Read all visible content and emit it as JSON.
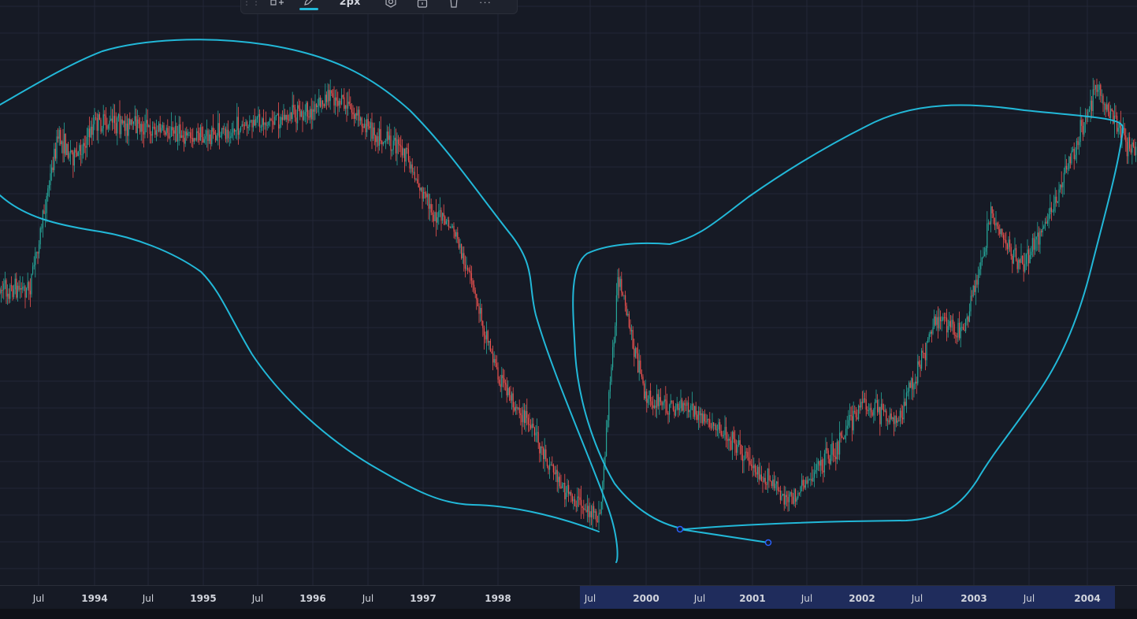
{
  "toolbar": {
    "grip_icon": "drag-handle-icon",
    "add_icon": "add-object-icon",
    "pen_icon": "pencil-icon",
    "pen_color": "#22b8d8",
    "width_label": "2px",
    "settings_icon": "gear-icon",
    "lock_icon": "lock-icon",
    "delete_icon": "trash-icon",
    "more_label": "···"
  },
  "colors": {
    "background": "#161a25",
    "grid": "#232736",
    "up_candle": "#26a69a",
    "down_candle": "#ef5350",
    "drawing": "#22b8d8",
    "highlight_range": "#1f2c5c"
  },
  "chart_data": {
    "type": "candlestick",
    "title": "",
    "xlabel": "",
    "ylabel": "",
    "xlim": [
      "1993-06-01",
      "2004-05-15"
    ],
    "grid": true,
    "x_ticks": [
      {
        "label": "Jul",
        "date": "1993-07-01",
        "bold": false
      },
      {
        "label": "1994",
        "date": "1994-01-01",
        "bold": true
      },
      {
        "label": "Jul",
        "date": "1994-07-01",
        "bold": false
      },
      {
        "label": "1995",
        "date": "1995-01-01",
        "bold": true
      },
      {
        "label": "Jul",
        "date": "1995-07-01",
        "bold": false
      },
      {
        "label": "1996",
        "date": "1996-01-01",
        "bold": true
      },
      {
        "label": "Jul",
        "date": "1996-07-01",
        "bold": false
      },
      {
        "label": "1997",
        "date": "1997-01-01",
        "bold": true
      },
      {
        "label": "1998",
        "date": "1998-01-01",
        "bold": true
      },
      {
        "label": "Jul",
        "date": "1999-07-01",
        "bold": false
      },
      {
        "label": "2000",
        "date": "2000-01-01",
        "bold": true
      },
      {
        "label": "Jul",
        "date": "2000-07-01",
        "bold": false
      },
      {
        "label": "2001",
        "date": "2001-01-01",
        "bold": true
      },
      {
        "label": "Jul",
        "date": "2001-07-01",
        "bold": false
      },
      {
        "label": "2002",
        "date": "2002-01-01",
        "bold": true
      },
      {
        "label": "Jul",
        "date": "2002-07-01",
        "bold": false
      },
      {
        "label": "2003",
        "date": "2003-01-01",
        "bold": true
      },
      {
        "label": "Jul",
        "date": "2003-07-01",
        "bold": false
      },
      {
        "label": "2004",
        "date": "2004-01-01",
        "bold": true
      }
    ],
    "selected_range": [
      "1999-05-01",
      "2004-04-01"
    ],
    "price_path_relative": [
      {
        "date": "1993-06-01",
        "value": 0.52
      },
      {
        "date": "1993-07-15",
        "value": 0.66
      },
      {
        "date": "1993-09-01",
        "value": 0.82
      },
      {
        "date": "1993-11-01",
        "value": 0.78
      },
      {
        "date": "1994-01-01",
        "value": 0.85
      },
      {
        "date": "1994-07-01",
        "value": 0.84
      },
      {
        "date": "1995-01-01",
        "value": 0.82
      },
      {
        "date": "1995-07-01",
        "value": 0.85
      },
      {
        "date": "1996-01-01",
        "value": 0.87
      },
      {
        "date": "1996-03-01",
        "value": 0.91
      },
      {
        "date": "1996-07-01",
        "value": 0.84
      },
      {
        "date": "1996-11-01",
        "value": 0.79
      },
      {
        "date": "1997-02-01",
        "value": 0.68
      },
      {
        "date": "1997-06-01",
        "value": 0.64
      },
      {
        "date": "1997-10-01",
        "value": 0.48
      },
      {
        "date": "1998-01-01",
        "value": 0.35
      },
      {
        "date": "1998-06-01",
        "value": 0.27
      },
      {
        "date": "1999-02-01",
        "value": 0.12
      },
      {
        "date": "1999-08-01",
        "value": 0.06
      },
      {
        "date": "1999-10-01",
        "value": 0.54
      },
      {
        "date": "2000-01-01",
        "value": 0.3
      },
      {
        "date": "2000-06-01",
        "value": 0.28
      },
      {
        "date": "2000-11-01",
        "value": 0.22
      },
      {
        "date": "2001-01-01",
        "value": 0.17
      },
      {
        "date": "2001-05-01",
        "value": 0.1
      },
      {
        "date": "2001-10-01",
        "value": 0.2
      },
      {
        "date": "2002-01-01",
        "value": 0.29
      },
      {
        "date": "2002-05-01",
        "value": 0.26
      },
      {
        "date": "2002-09-01",
        "value": 0.46
      },
      {
        "date": "2002-12-01",
        "value": 0.43
      },
      {
        "date": "2003-03-01",
        "value": 0.67
      },
      {
        "date": "2003-06-01",
        "value": 0.56
      },
      {
        "date": "2003-09-01",
        "value": 0.66
      },
      {
        "date": "2003-12-01",
        "value": 0.82
      },
      {
        "date": "2004-02-01",
        "value": 0.92
      },
      {
        "date": "2004-05-15",
        "value": 0.8
      }
    ]
  }
}
